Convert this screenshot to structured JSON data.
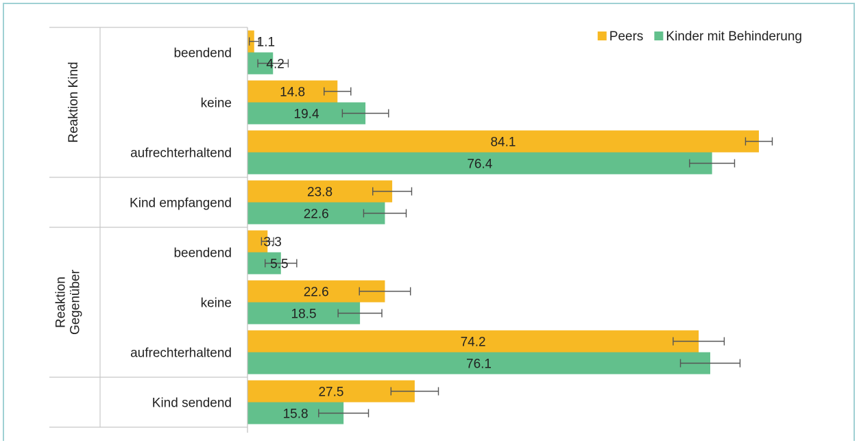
{
  "chart_data": {
    "type": "bar",
    "orientation": "horizontal",
    "legend_position": "top-right",
    "grid": false,
    "xlim": [
      0,
      100
    ],
    "series": [
      {
        "name": "Peers",
        "color": "#f7b924"
      },
      {
        "name": "Kinder mit Behinderung",
        "color": "#62c08c"
      }
    ],
    "groups": [
      {
        "label": "Reaktion Kind",
        "categories": [
          {
            "label": "beendend",
            "values": [
              1.1,
              4.2
            ],
            "errors": [
              0.8,
              2.5
            ]
          },
          {
            "label": "keine",
            "values": [
              14.8,
              19.4
            ],
            "errors": [
              2.2,
              3.8
            ]
          },
          {
            "label": "aufrechterhaltend",
            "values": [
              84.1,
              76.4
            ],
            "errors": [
              2.2,
              3.7
            ]
          }
        ]
      },
      {
        "label": "",
        "categories": [
          {
            "label": "Kind empfangend",
            "values": [
              23.8,
              22.6
            ],
            "errors": [
              3.2,
              3.5
            ]
          }
        ]
      },
      {
        "label": "Reaktion Gegenüber",
        "label_lines": [
          "Reaktion",
          "Gegenüber"
        ],
        "categories": [
          {
            "label": "beendend",
            "values": [
              3.3,
              5.5
            ],
            "errors": [
              1.0,
              2.6
            ]
          },
          {
            "label": "keine",
            "values": [
              22.6,
              18.5
            ],
            "errors": [
              4.2,
              3.6
            ]
          },
          {
            "label": "aufrechterhaltend",
            "values": [
              74.2,
              76.1
            ],
            "errors": [
              4.2,
              4.9
            ]
          }
        ]
      },
      {
        "label": "",
        "categories": [
          {
            "label": "Kind sendend",
            "values": [
              27.5,
              15.8
            ],
            "errors": [
              3.9,
              4.1
            ]
          }
        ]
      }
    ]
  }
}
